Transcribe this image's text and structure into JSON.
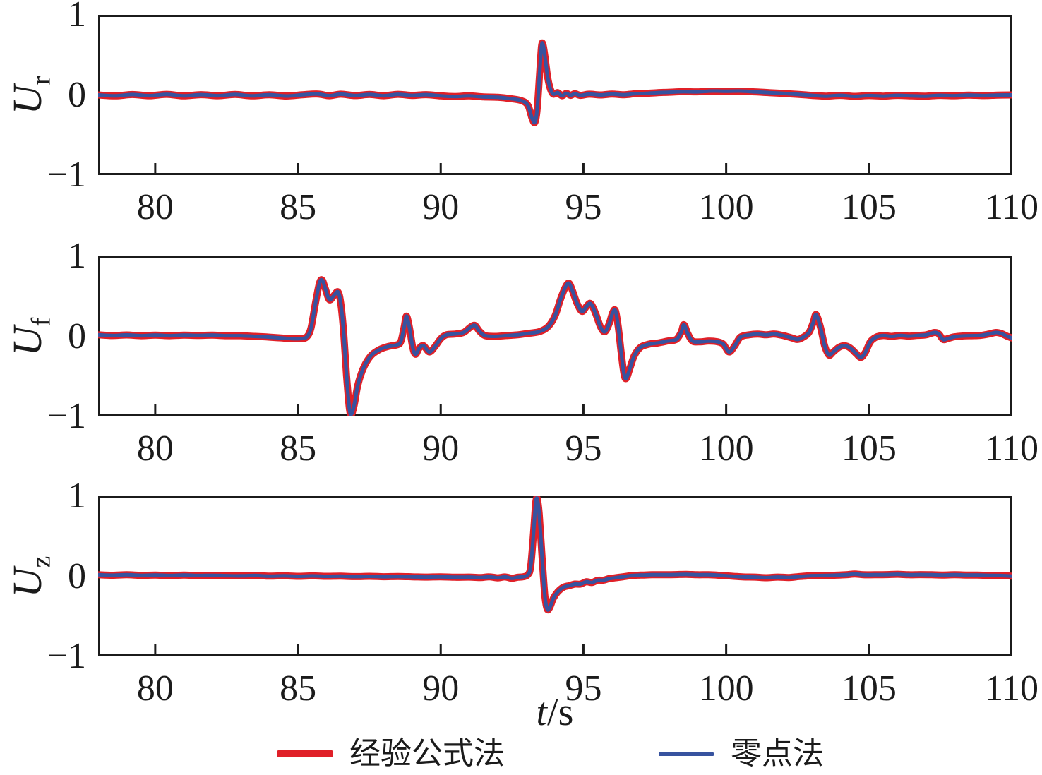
{
  "figure": {
    "background": "#ffffff",
    "axis_color": "#1b1b1b",
    "xlabel": {
      "var": "t",
      "unit": "/s"
    }
  },
  "legend": [
    {
      "label": "经验公式法",
      "color": "#e02028",
      "thickness": 10
    },
    {
      "label": "零点法",
      "color": "#37539f",
      "thickness": 5
    }
  ],
  "chart_data": [
    {
      "type": "line",
      "ylabel": {
        "base": "U",
        "sub": "r"
      },
      "xlim": [
        78,
        110
      ],
      "ylim": [
        -1,
        1
      ],
      "x_ticks": [
        80,
        85,
        90,
        95,
        100,
        105,
        110
      ],
      "y_ticks": [
        1,
        0,
        -1
      ],
      "y_tick_labels": [
        "1",
        "0",
        "−1"
      ],
      "grid": false,
      "series": [
        {
          "name": "经验公式法",
          "color": "#e02028",
          "width": 10,
          "points": "shared"
        },
        {
          "name": "零点法",
          "color": "#37539f",
          "width": 5,
          "points": "shared"
        }
      ],
      "points": [
        [
          78,
          0.0
        ],
        [
          78.6,
          -0.012
        ],
        [
          79.2,
          0.005
        ],
        [
          79.8,
          -0.01
        ],
        [
          80.4,
          0.008
        ],
        [
          81,
          -0.012
        ],
        [
          81.6,
          0.004
        ],
        [
          82.2,
          -0.01
        ],
        [
          82.8,
          0.006
        ],
        [
          83.4,
          -0.012
        ],
        [
          84,
          0.002
        ],
        [
          84.6,
          -0.014
        ],
        [
          85.2,
          0.004
        ],
        [
          85.7,
          0.012
        ],
        [
          86.1,
          -0.01
        ],
        [
          86.5,
          0.01
        ],
        [
          87,
          -0.008
        ],
        [
          87.5,
          0.006
        ],
        [
          88,
          -0.01
        ],
        [
          88.5,
          0.008
        ],
        [
          89,
          -0.006
        ],
        [
          89.5,
          0.004
        ],
        [
          90,
          -0.012
        ],
        [
          90.5,
          -0.02
        ],
        [
          91,
          -0.012
        ],
        [
          91.5,
          -0.025
        ],
        [
          92,
          -0.03
        ],
        [
          92.4,
          -0.045
        ],
        [
          92.8,
          -0.07
        ],
        [
          93.05,
          -0.13
        ],
        [
          93.2,
          -0.3
        ],
        [
          93.3,
          -0.35
        ],
        [
          93.38,
          -0.18
        ],
        [
          93.46,
          0.25
        ],
        [
          93.53,
          0.62
        ],
        [
          93.58,
          0.65
        ],
        [
          93.65,
          0.5
        ],
        [
          93.75,
          0.22
        ],
        [
          93.85,
          0.07
        ],
        [
          93.95,
          0.01
        ],
        [
          94.1,
          0.03
        ],
        [
          94.25,
          -0.01
        ],
        [
          94.4,
          0.02
        ],
        [
          94.55,
          -0.005
        ],
        [
          94.7,
          0.015
        ],
        [
          94.9,
          -0.005
        ],
        [
          95.2,
          0.01
        ],
        [
          95.6,
          0.0
        ],
        [
          96,
          0.012
        ],
        [
          96.4,
          0.002
        ],
        [
          96.8,
          0.015
        ],
        [
          97.2,
          0.02
        ],
        [
          97.6,
          0.03
        ],
        [
          98,
          0.035
        ],
        [
          98.5,
          0.042
        ],
        [
          99,
          0.04
        ],
        [
          99.5,
          0.05
        ],
        [
          100,
          0.048
        ],
        [
          100.5,
          0.05
        ],
        [
          101,
          0.04
        ],
        [
          101.5,
          0.03
        ],
        [
          102,
          0.02
        ],
        [
          102.5,
          0.008
        ],
        [
          103,
          -0.005
        ],
        [
          103.5,
          -0.015
        ],
        [
          104,
          -0.005
        ],
        [
          104.5,
          -0.018
        ],
        [
          105,
          -0.008
        ],
        [
          105.5,
          -0.015
        ],
        [
          106,
          -0.005
        ],
        [
          106.5,
          -0.012
        ],
        [
          107,
          -0.015
        ],
        [
          107.5,
          -0.005
        ],
        [
          108,
          -0.01
        ],
        [
          108.5,
          -0.002
        ],
        [
          109,
          -0.008
        ],
        [
          109.5,
          -0.002
        ],
        [
          110,
          0.0
        ]
      ]
    },
    {
      "type": "line",
      "ylabel": {
        "base": "U",
        "sub": "f"
      },
      "xlim": [
        78,
        110
      ],
      "ylim": [
        -1,
        1
      ],
      "x_ticks": [
        80,
        85,
        90,
        95,
        100,
        105,
        110
      ],
      "y_ticks": [
        1,
        0,
        -1
      ],
      "y_tick_labels": [
        "1",
        "0",
        "−1"
      ],
      "grid": false,
      "series": [
        {
          "name": "经验公式法",
          "color": "#e02028",
          "width": 10,
          "points": "shared"
        },
        {
          "name": "零点法",
          "color": "#37539f",
          "width": 5,
          "points": "shared"
        }
      ],
      "points": [
        [
          78,
          0.02
        ],
        [
          78.5,
          0.01
        ],
        [
          79,
          0.018
        ],
        [
          79.5,
          0.008
        ],
        [
          80,
          0.016
        ],
        [
          80.5,
          0.008
        ],
        [
          81,
          0.015
        ],
        [
          81.5,
          0.012
        ],
        [
          82,
          0.015
        ],
        [
          82.5,
          0.008
        ],
        [
          83,
          0.008
        ],
        [
          83.5,
          0.0
        ],
        [
          84,
          -0.01
        ],
        [
          84.4,
          -0.02
        ],
        [
          84.8,
          -0.03
        ],
        [
          85.1,
          -0.028
        ],
        [
          85.3,
          -0.01
        ],
        [
          85.45,
          0.1
        ],
        [
          85.6,
          0.4
        ],
        [
          85.75,
          0.68
        ],
        [
          85.85,
          0.72
        ],
        [
          85.95,
          0.62
        ],
        [
          86.1,
          0.47
        ],
        [
          86.25,
          0.52
        ],
        [
          86.4,
          0.57
        ],
        [
          86.5,
          0.42
        ],
        [
          86.6,
          0.05
        ],
        [
          86.7,
          -0.5
        ],
        [
          86.8,
          -0.92
        ],
        [
          86.87,
          -1.0
        ],
        [
          86.97,
          -0.88
        ],
        [
          87.1,
          -0.62
        ],
        [
          87.3,
          -0.4
        ],
        [
          87.55,
          -0.25
        ],
        [
          87.85,
          -0.17
        ],
        [
          88.15,
          -0.13
        ],
        [
          88.45,
          -0.11
        ],
        [
          88.6,
          -0.07
        ],
        [
          88.72,
          0.12
        ],
        [
          88.8,
          0.26
        ],
        [
          88.9,
          0.12
        ],
        [
          89.02,
          -0.14
        ],
        [
          89.12,
          -0.23
        ],
        [
          89.25,
          -0.15
        ],
        [
          89.4,
          -0.12
        ],
        [
          89.6,
          -0.2
        ],
        [
          89.8,
          -0.13
        ],
        [
          90,
          -0.03
        ],
        [
          90.2,
          0.02
        ],
        [
          90.5,
          0.03
        ],
        [
          90.8,
          0.05
        ],
        [
          91.05,
          0.12
        ],
        [
          91.2,
          0.14
        ],
        [
          91.35,
          0.07
        ],
        [
          91.55,
          0.01
        ],
        [
          91.9,
          0.0
        ],
        [
          92.3,
          0.01
        ],
        [
          92.7,
          0.02
        ],
        [
          93.1,
          0.04
        ],
        [
          93.45,
          0.06
        ],
        [
          93.75,
          0.12
        ],
        [
          94,
          0.26
        ],
        [
          94.2,
          0.48
        ],
        [
          94.38,
          0.64
        ],
        [
          94.5,
          0.68
        ],
        [
          94.62,
          0.58
        ],
        [
          94.78,
          0.42
        ],
        [
          94.95,
          0.32
        ],
        [
          95.1,
          0.38
        ],
        [
          95.25,
          0.42
        ],
        [
          95.42,
          0.3
        ],
        [
          95.6,
          0.12
        ],
        [
          95.75,
          0.06
        ],
        [
          95.9,
          0.16
        ],
        [
          96.02,
          0.3
        ],
        [
          96.12,
          0.33
        ],
        [
          96.22,
          0.12
        ],
        [
          96.32,
          -0.2
        ],
        [
          96.42,
          -0.48
        ],
        [
          96.5,
          -0.54
        ],
        [
          96.62,
          -0.42
        ],
        [
          96.78,
          -0.25
        ],
        [
          97,
          -0.14
        ],
        [
          97.3,
          -0.1
        ],
        [
          97.6,
          -0.085
        ],
        [
          97.95,
          -0.06
        ],
        [
          98.25,
          -0.04
        ],
        [
          98.42,
          0.05
        ],
        [
          98.52,
          0.15
        ],
        [
          98.65,
          0.04
        ],
        [
          98.82,
          -0.06
        ],
        [
          99.1,
          -0.07
        ],
        [
          99.4,
          -0.06
        ],
        [
          99.7,
          -0.07
        ],
        [
          99.9,
          -0.1
        ],
        [
          100.1,
          -0.2
        ],
        [
          100.3,
          -0.12
        ],
        [
          100.5,
          -0.01
        ],
        [
          100.8,
          0.02
        ],
        [
          101.1,
          0.03
        ],
        [
          101.4,
          0.02
        ],
        [
          101.7,
          0.03
        ],
        [
          102,
          0.01
        ],
        [
          102.3,
          -0.02
        ],
        [
          102.5,
          -0.04
        ],
        [
          102.7,
          -0.01
        ],
        [
          102.9,
          0.05
        ],
        [
          103.05,
          0.18
        ],
        [
          103.15,
          0.28
        ],
        [
          103.3,
          0.12
        ],
        [
          103.45,
          -0.12
        ],
        [
          103.6,
          -0.24
        ],
        [
          103.75,
          -0.2
        ],
        [
          103.95,
          -0.14
        ],
        [
          104.15,
          -0.12
        ],
        [
          104.35,
          -0.15
        ],
        [
          104.55,
          -0.22
        ],
        [
          104.72,
          -0.27
        ],
        [
          104.88,
          -0.2
        ],
        [
          105.05,
          -0.07
        ],
        [
          105.25,
          -0.01
        ],
        [
          105.5,
          0.01
        ],
        [
          105.8,
          0.0
        ],
        [
          106.1,
          0.012
        ],
        [
          106.4,
          0.004
        ],
        [
          106.7,
          0.012
        ],
        [
          107,
          0.02
        ],
        [
          107.3,
          0.05
        ],
        [
          107.45,
          0.03
        ],
        [
          107.6,
          -0.04
        ],
        [
          107.75,
          -0.03
        ],
        [
          108,
          -0.005
        ],
        [
          108.3,
          0.005
        ],
        [
          108.6,
          0.008
        ],
        [
          108.9,
          0.012
        ],
        [
          109.2,
          0.03
        ],
        [
          109.45,
          0.05
        ],
        [
          109.65,
          0.035
        ],
        [
          109.85,
          0.0
        ],
        [
          110,
          -0.02
        ]
      ]
    },
    {
      "type": "line",
      "ylabel": {
        "base": "U",
        "sub": "z"
      },
      "xlim": [
        78,
        110
      ],
      "ylim": [
        -1,
        1
      ],
      "x_ticks": [
        80,
        85,
        90,
        95,
        100,
        105,
        110
      ],
      "y_ticks": [
        1,
        0,
        -1
      ],
      "y_tick_labels": [
        "1",
        "0",
        "−1"
      ],
      "grid": false,
      "series": [
        {
          "name": "经验公式法",
          "color": "#e02028",
          "width": 10,
          "points": "shared"
        },
        {
          "name": "零点法",
          "color": "#37539f",
          "width": 5,
          "points": "shared"
        }
      ],
      "points": [
        [
          78,
          0.02
        ],
        [
          78.5,
          0.014
        ],
        [
          79,
          0.02
        ],
        [
          79.5,
          0.012
        ],
        [
          80,
          0.016
        ],
        [
          80.5,
          0.01
        ],
        [
          81,
          0.015
        ],
        [
          81.5,
          0.01
        ],
        [
          82,
          0.012
        ],
        [
          82.5,
          0.008
        ],
        [
          83,
          0.006
        ],
        [
          83.5,
          0.01
        ],
        [
          84,
          0.002
        ],
        [
          84.5,
          0.006
        ],
        [
          85,
          0.0
        ],
        [
          85.5,
          0.005
        ],
        [
          86,
          0.0
        ],
        [
          86.5,
          0.002
        ],
        [
          87,
          -0.004
        ],
        [
          87.5,
          0.0
        ],
        [
          88,
          -0.005
        ],
        [
          88.5,
          -0.002
        ],
        [
          89,
          -0.006
        ],
        [
          89.5,
          -0.01
        ],
        [
          90,
          -0.006
        ],
        [
          90.5,
          -0.012
        ],
        [
          91,
          -0.01
        ],
        [
          91.4,
          -0.016
        ],
        [
          91.7,
          -0.006
        ],
        [
          92,
          -0.02
        ],
        [
          92.25,
          -0.008
        ],
        [
          92.5,
          -0.025
        ],
        [
          92.7,
          -0.012
        ],
        [
          92.9,
          -0.005
        ],
        [
          93.05,
          0.02
        ],
        [
          93.15,
          0.12
        ],
        [
          93.25,
          0.55
        ],
        [
          93.33,
          0.95
        ],
        [
          93.38,
          1.0
        ],
        [
          93.45,
          0.8
        ],
        [
          93.55,
          0.25
        ],
        [
          93.65,
          -0.25
        ],
        [
          93.73,
          -0.42
        ],
        [
          93.82,
          -0.4
        ],
        [
          93.95,
          -0.28
        ],
        [
          94.1,
          -0.2
        ],
        [
          94.3,
          -0.14
        ],
        [
          94.5,
          -0.12
        ],
        [
          94.7,
          -0.1
        ],
        [
          94.9,
          -0.1
        ],
        [
          95.1,
          -0.07
        ],
        [
          95.3,
          -0.08
        ],
        [
          95.5,
          -0.05
        ],
        [
          95.7,
          -0.05
        ],
        [
          95.9,
          -0.03
        ],
        [
          96.1,
          -0.02
        ],
        [
          96.4,
          -0.005
        ],
        [
          96.7,
          0.01
        ],
        [
          97,
          0.015
        ],
        [
          97.4,
          0.02
        ],
        [
          97.8,
          0.02
        ],
        [
          98.2,
          0.022
        ],
        [
          98.6,
          0.025
        ],
        [
          99,
          0.02
        ],
        [
          99.4,
          0.02
        ],
        [
          99.8,
          0.012
        ],
        [
          100.2,
          0.002
        ],
        [
          100.6,
          -0.008
        ],
        [
          101,
          -0.01
        ],
        [
          101.4,
          -0.018
        ],
        [
          101.8,
          -0.01
        ],
        [
          102.2,
          -0.015
        ],
        [
          102.6,
          -0.002
        ],
        [
          103,
          0.008
        ],
        [
          103.4,
          0.01
        ],
        [
          103.8,
          0.014
        ],
        [
          104.2,
          0.02
        ],
        [
          104.5,
          0.03
        ],
        [
          104.8,
          0.02
        ],
        [
          105.2,
          0.02
        ],
        [
          105.6,
          0.022
        ],
        [
          106,
          0.026
        ],
        [
          106.4,
          0.02
        ],
        [
          106.8,
          0.022
        ],
        [
          107.2,
          0.02
        ],
        [
          107.6,
          0.016
        ],
        [
          108,
          0.02
        ],
        [
          108.4,
          0.016
        ],
        [
          108.8,
          0.015
        ],
        [
          109.2,
          0.012
        ],
        [
          109.6,
          0.01
        ],
        [
          110,
          0.002
        ]
      ]
    }
  ]
}
